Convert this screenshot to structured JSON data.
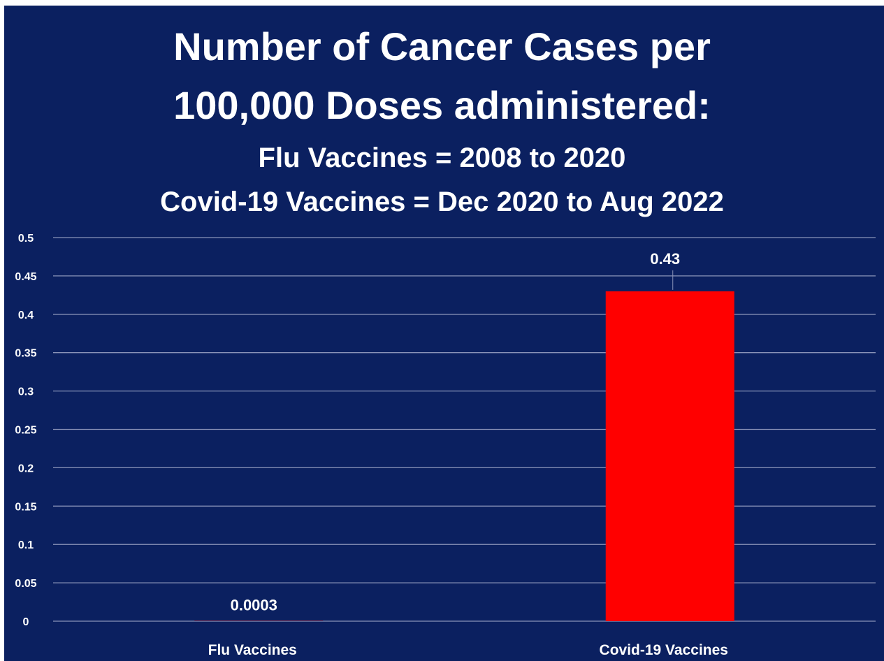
{
  "chart_data": {
    "type": "bar",
    "title": "Number of Cancer Cases per 100,000 Doses administered:",
    "title_lines": [
      "Number of Cancer Cases per",
      "100,000 Doses administered:"
    ],
    "subtitle_lines": [
      "Flu Vaccines = 2008 to 2020",
      "Covid-19 Vaccines = Dec 2020 to Aug 2022"
    ],
    "categories": [
      "Flu Vaccines",
      "Covid-19 Vaccines"
    ],
    "values": [
      0.0003,
      0.43
    ],
    "data_labels": [
      "0.0003",
      "0.43"
    ],
    "bar_color": "#ff0000",
    "background_color": "#0b2060",
    "gridline_color": "#8a93b8",
    "ylim": [
      0,
      0.5
    ],
    "yticks": [
      "0",
      "0.05",
      "0.1",
      "0.15",
      "0.2",
      "0.25",
      "0.3",
      "0.35",
      "0.4",
      "0.45",
      "0.5"
    ],
    "grid": true,
    "legend": "none",
    "xlabel": "",
    "ylabel": ""
  }
}
